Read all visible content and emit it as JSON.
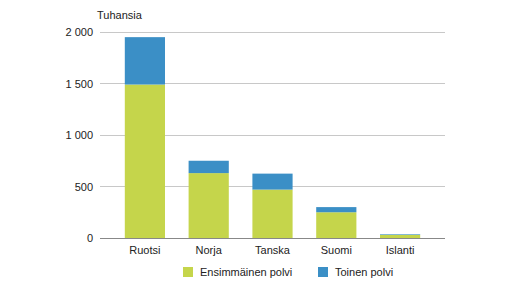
{
  "chart_data": {
    "type": "bar",
    "stacked": true,
    "y_label": "Tuhansia",
    "categories": [
      "Ruotsi",
      "Norja",
      "Tanska",
      "Suomi",
      "Islanti"
    ],
    "series": [
      {
        "name": "Ensimmäinen polvi",
        "color": "#c5d54b",
        "values": [
          1490,
          630,
          470,
          250,
          30
        ]
      },
      {
        "name": "Toinen polvi",
        "color": "#3b8fc6",
        "values": [
          460,
          120,
          155,
          50,
          6
        ]
      }
    ],
    "ylim": [
      0,
      2000
    ],
    "yticks": [
      0,
      500,
      {
        "value": 1000,
        "label": "1 000"
      },
      {
        "value": 1500,
        "label": "1 500"
      },
      {
        "value": 2000,
        "label": "2 000"
      }
    ],
    "grid": true,
    "legend": "bottom"
  }
}
